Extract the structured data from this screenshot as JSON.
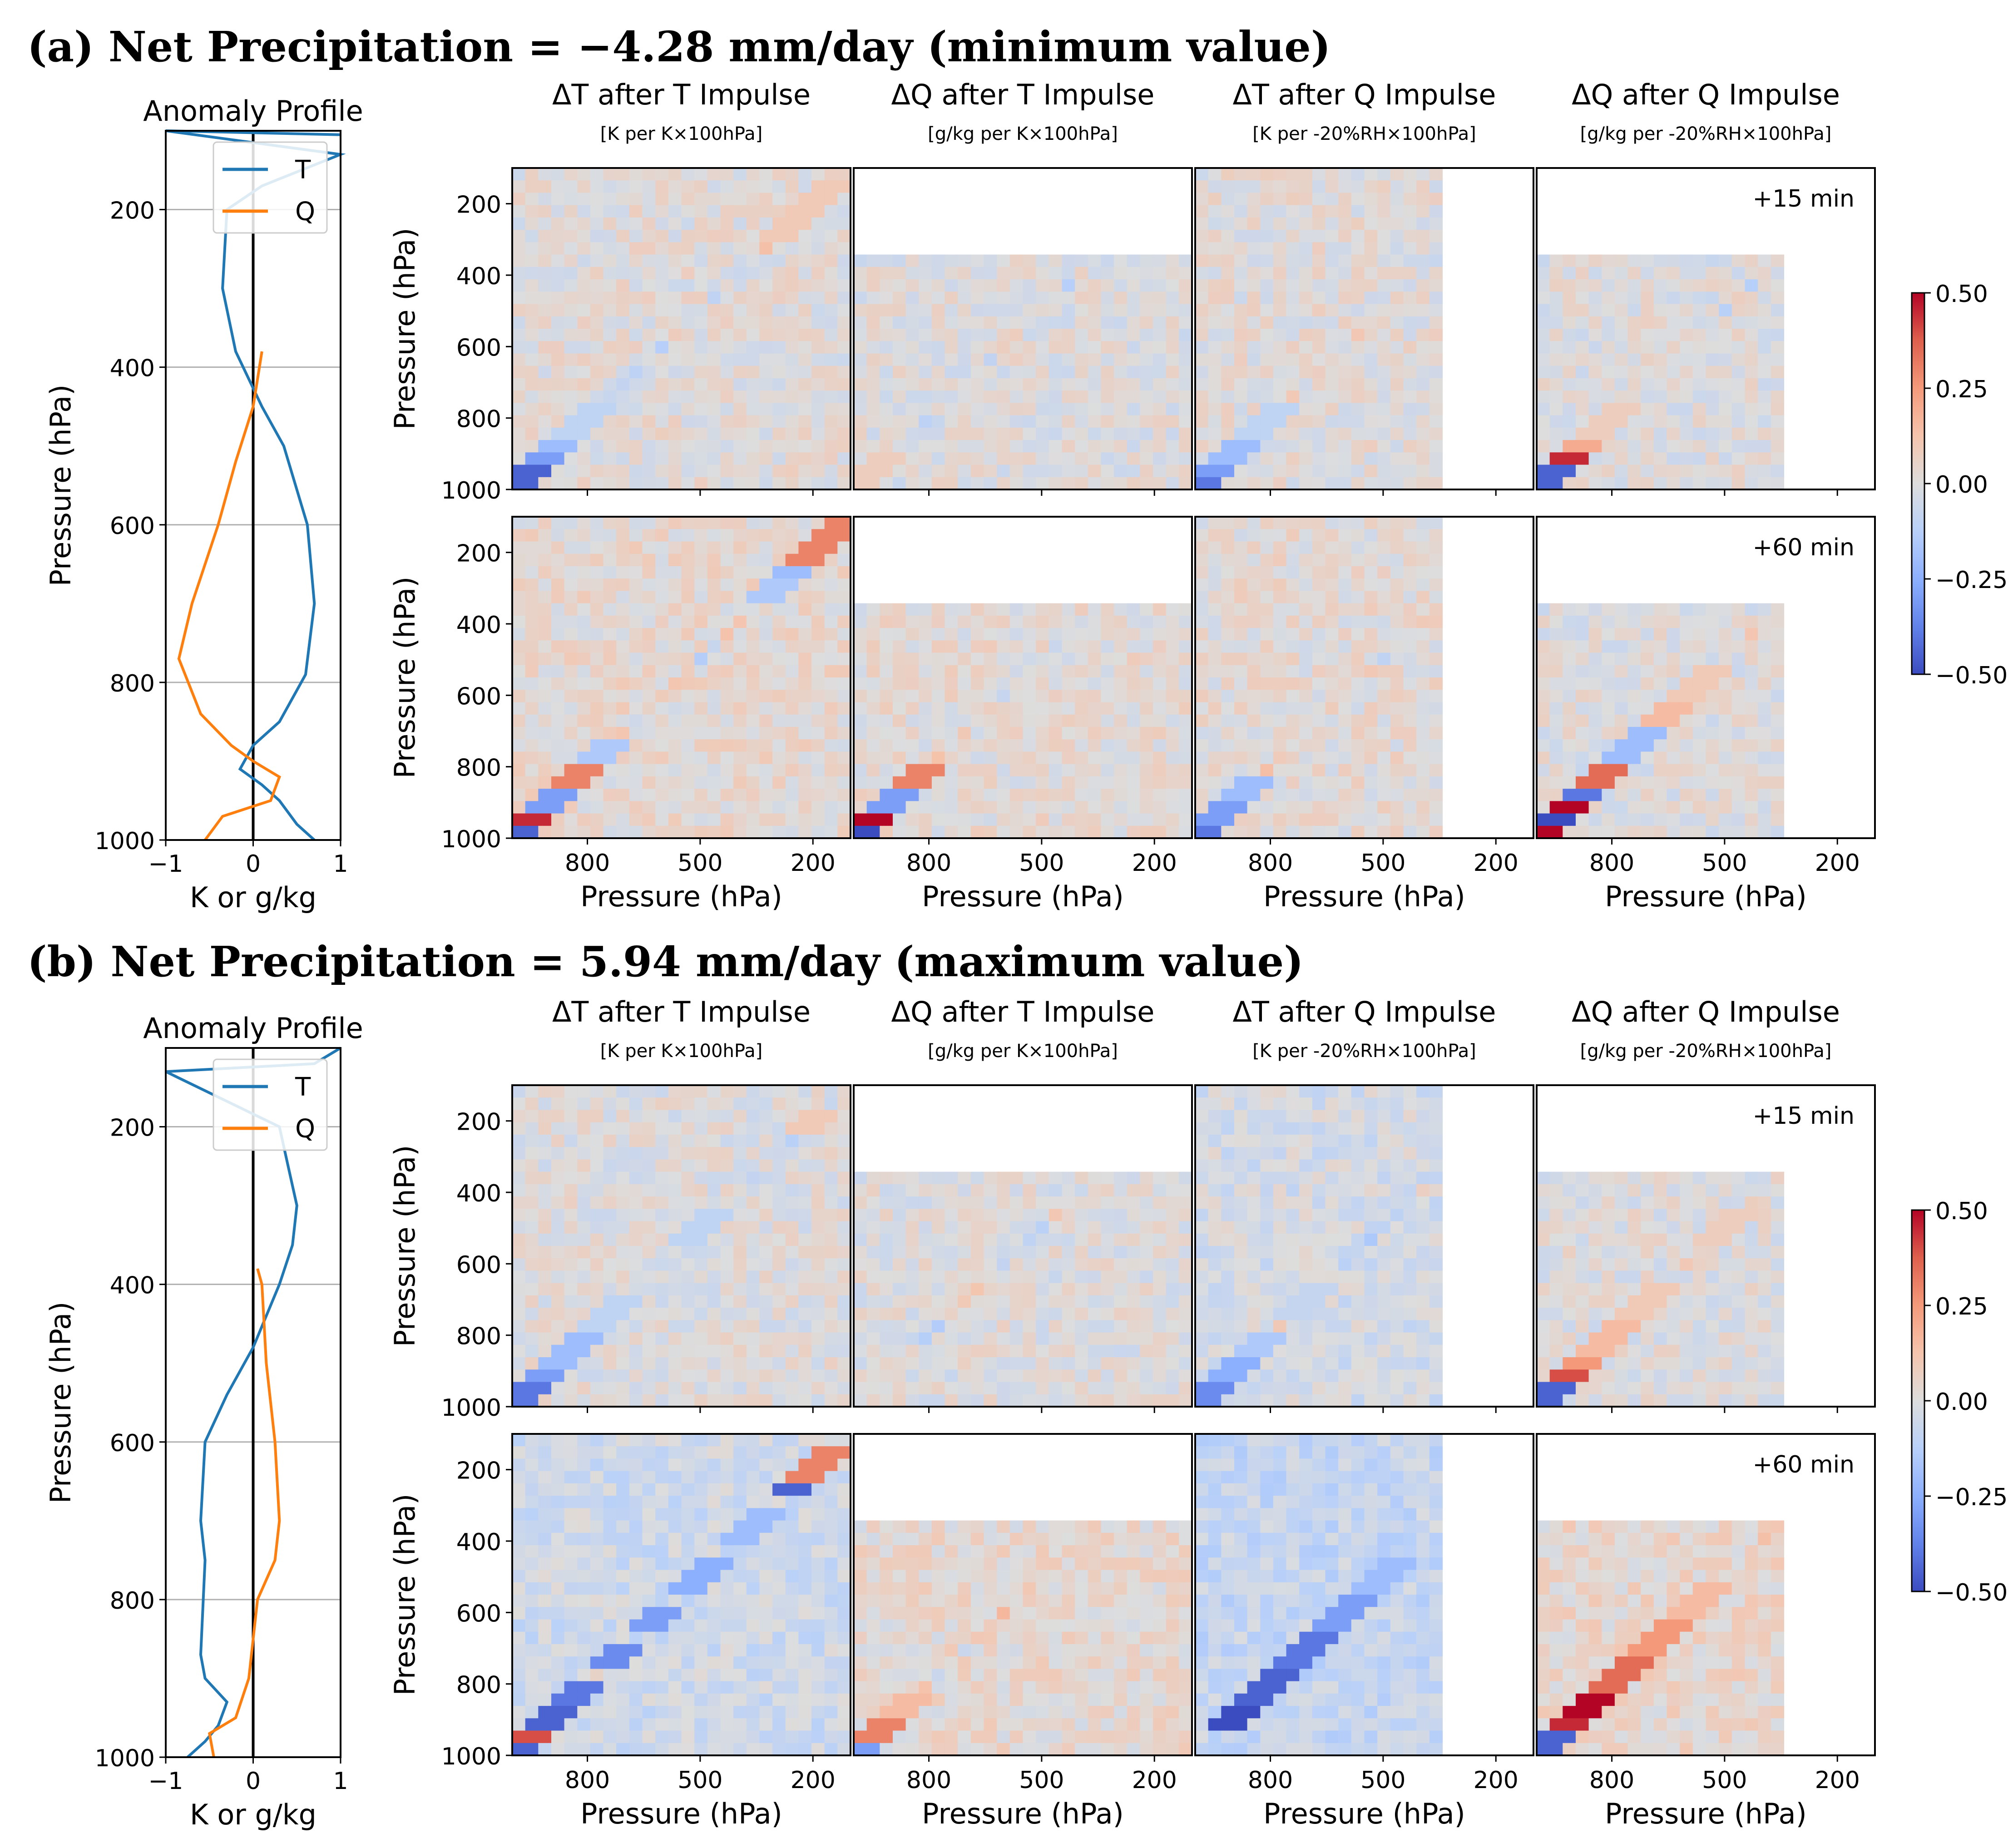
{
  "figure": {
    "panels": [
      {
        "label": "(a) Net Precipitation = −4.28 mm/day (minimum value)",
        "profile_title": "Anomaly Profile",
        "profile_xlabel": "K or g/kg",
        "profile_ylabel": "Pressure (hPa)",
        "legend": [
          "T",
          "Q"
        ]
      },
      {
        "label": "(b) Net Precipitation = 5.94 mm/day (maximum value)",
        "profile_title": "Anomaly Profile",
        "profile_xlabel": "K or g/kg",
        "profile_ylabel": "Pressure (hPa)",
        "legend": [
          "T",
          "Q"
        ]
      }
    ],
    "columns": [
      {
        "title": "ΔT after T Impulse",
        "units": "[K per K×100hPa]"
      },
      {
        "title": "ΔQ after T Impulse",
        "units": "[g/kg per K×100hPa]"
      },
      {
        "title": "ΔT after Q Impulse",
        "units": "[K per -20%RH×100hPa]"
      },
      {
        "title": "ΔQ after Q Impulse",
        "units": "[g/kg per -20%RH×100hPa]"
      }
    ],
    "times": [
      "+15 min",
      "+60 min"
    ],
    "heatmap_axis_label": "Pressure (hPa)",
    "heatmap_ticks": [
      "200",
      "400",
      "600",
      "800",
      "1000"
    ],
    "heatmap_xticks": [
      "800",
      "500",
      "200"
    ],
    "profile_yticks": [
      "200",
      "400",
      "600",
      "800",
      "1000"
    ],
    "profile_xticks": [
      "−1",
      "0",
      "1"
    ],
    "colorbar_ticks": [
      "0.50",
      "0.25",
      "0.00",
      "−0.25",
      "−0.50"
    ]
  },
  "chart_data": [
    {
      "type": "line",
      "panel": "a",
      "xlim": [
        -1,
        1
      ],
      "ylim": [
        1000,
        100
      ],
      "series": [
        {
          "name": "T",
          "color": "#1f77b4",
          "points": [
            [
              0.7,
              1000
            ],
            [
              0.5,
              980
            ],
            [
              0.3,
              950
            ],
            [
              0.1,
              930
            ],
            [
              -0.15,
              910
            ],
            [
              0.0,
              880
            ],
            [
              0.3,
              850
            ],
            [
              0.6,
              790
            ],
            [
              0.7,
              700
            ],
            [
              0.62,
              600
            ],
            [
              0.35,
              500
            ],
            [
              0.1,
              450
            ],
            [
              -0.2,
              380
            ],
            [
              -0.35,
              300
            ],
            [
              -0.3,
              200
            ],
            [
              0.1,
              170
            ],
            [
              1.0,
              130
            ],
            [
              -1.0,
              100
            ],
            [
              1.0,
              105
            ]
          ]
        },
        {
          "name": "Q",
          "color": "#ff7f0e",
          "points": [
            [
              -0.55,
              1000
            ],
            [
              -0.35,
              970
            ],
            [
              0.2,
              950
            ],
            [
              0.3,
              920
            ],
            [
              0.0,
              900
            ],
            [
              -0.25,
              880
            ],
            [
              -0.6,
              840
            ],
            [
              -0.85,
              770
            ],
            [
              -0.7,
              700
            ],
            [
              -0.4,
              600
            ],
            [
              -0.2,
              520
            ],
            [
              0.0,
              450
            ],
            [
              0.1,
              380
            ]
          ]
        }
      ]
    },
    {
      "type": "line",
      "panel": "b",
      "xlim": [
        -1,
        1
      ],
      "ylim": [
        1000,
        100
      ],
      "series": [
        {
          "name": "T",
          "color": "#1f77b4",
          "points": [
            [
              -0.75,
              1000
            ],
            [
              -0.55,
              980
            ],
            [
              -0.4,
              960
            ],
            [
              -0.3,
              930
            ],
            [
              -0.55,
              900
            ],
            [
              -0.6,
              870
            ],
            [
              -0.55,
              750
            ],
            [
              -0.6,
              700
            ],
            [
              -0.55,
              600
            ],
            [
              -0.3,
              540
            ],
            [
              0.0,
              480
            ],
            [
              0.3,
              400
            ],
            [
              0.45,
              350
            ],
            [
              0.5,
              300
            ],
            [
              0.4,
              250
            ],
            [
              0.3,
              200
            ],
            [
              -1.0,
              130
            ],
            [
              0.7,
              120
            ],
            [
              1.0,
              100
            ]
          ]
        },
        {
          "name": "Q",
          "color": "#ff7f0e",
          "points": [
            [
              -0.45,
              1000
            ],
            [
              -0.5,
              970
            ],
            [
              -0.2,
              950
            ],
            [
              -0.05,
              900
            ],
            [
              0.0,
              850
            ],
            [
              0.05,
              800
            ],
            [
              0.25,
              750
            ],
            [
              0.3,
              700
            ],
            [
              0.25,
              600
            ],
            [
              0.15,
              500
            ],
            [
              0.1,
              400
            ],
            [
              0.05,
              380
            ]
          ]
        }
      ]
    },
    {
      "type": "heatmap",
      "description_values": "response matrices: input pressure (x) vs response pressure (y), colour range -0.5 to 0.5",
      "vmin": -0.5,
      "vmax": 0.5,
      "axis_range_hpa": [
        1000,
        100
      ],
      "grids": [
        {
          "panel": "a",
          "row": "+15 min",
          "col": 0,
          "mask_top_hpa": 100,
          "mask_right_hpa": null,
          "diag": [
            [
              1000,
              -0.45
            ],
            [
              970,
              0.4
            ],
            [
              940,
              -0.45
            ],
            [
              900,
              -0.3
            ],
            [
              860,
              -0.2
            ],
            [
              800,
              -0.1
            ],
            [
              700,
              -0.05
            ],
            [
              400,
              -0.05
            ],
            [
              250,
              0.1
            ],
            [
              180,
              0.1
            ]
          ],
          "bg": 0.01
        },
        {
          "panel": "a",
          "row": "+15 min",
          "col": 1,
          "mask_top_hpa": 340,
          "mask_right_hpa": null,
          "diag": [
            [
              1000,
              0.1
            ],
            [
              950,
              0.08
            ]
          ],
          "bg": 0.0
        },
        {
          "panel": "a",
          "row": "+15 min",
          "col": 2,
          "mask_top_hpa": 100,
          "mask_right_hpa": 340,
          "diag": [
            [
              950,
              -0.4
            ],
            [
              920,
              -0.3
            ],
            [
              870,
              -0.2
            ],
            [
              800,
              -0.1
            ]
          ],
          "bg": 0.01
        },
        {
          "panel": "a",
          "row": "+15 min",
          "col": 3,
          "mask_top_hpa": 340,
          "mask_right_hpa": 340,
          "diag": [
            [
              1000,
              -0.45
            ],
            [
              970,
              0.45
            ],
            [
              940,
              -0.45
            ],
            [
              900,
              0.45
            ],
            [
              860,
              0.2
            ],
            [
              800,
              0.08
            ]
          ],
          "bg": 0.0
        },
        {
          "panel": "a",
          "row": "+60 min",
          "col": 0,
          "mask_top_hpa": 100,
          "mask_right_hpa": null,
          "diag": [
            [
              1000,
              0.5
            ],
            [
              960,
              -0.45
            ],
            [
              920,
              0.45
            ],
            [
              880,
              -0.3
            ],
            [
              820,
              0.3
            ],
            [
              760,
              -0.15
            ],
            [
              300,
              -0.15
            ],
            [
              220,
              -0.2
            ],
            [
              180,
              0.3
            ],
            [
              150,
              0.3
            ]
          ],
          "bg": 0.03
        },
        {
          "panel": "a",
          "row": "+60 min",
          "col": 1,
          "mask_top_hpa": 340,
          "mask_right_hpa": null,
          "diag": [
            [
              1000,
              0.5
            ],
            [
              960,
              -0.5
            ],
            [
              920,
              0.5
            ],
            [
              880,
              -0.3
            ],
            [
              820,
              0.3
            ],
            [
              760,
              0.05
            ]
          ],
          "bg": 0.02
        },
        {
          "panel": "a",
          "row": "+60 min",
          "col": 2,
          "mask_top_hpa": 100,
          "mask_right_hpa": 340,
          "diag": [
            [
              1000,
              -0.45
            ],
            [
              960,
              -0.4
            ],
            [
              920,
              -0.3
            ],
            [
              860,
              -0.2
            ]
          ],
          "bg": 0.02
        },
        {
          "panel": "a",
          "row": "+60 min",
          "col": 3,
          "mask_top_hpa": 340,
          "mask_right_hpa": 340,
          "diag": [
            [
              1000,
              -0.5
            ],
            [
              960,
              0.5
            ],
            [
              920,
              -0.5
            ],
            [
              880,
              0.5
            ],
            [
              840,
              -0.4
            ],
            [
              800,
              0.35
            ],
            [
              740,
              -0.2
            ],
            [
              650,
              0.15
            ],
            [
              560,
              0.1
            ]
          ],
          "bg": 0.0
        },
        {
          "panel": "b",
          "row": "+15 min",
          "col": 0,
          "mask_top_hpa": 100,
          "mask_right_hpa": null,
          "diag": [
            [
              1000,
              -0.45
            ],
            [
              970,
              0.3
            ],
            [
              940,
              -0.4
            ],
            [
              900,
              -0.3
            ],
            [
              850,
              -0.2
            ],
            [
              750,
              -0.1
            ],
            [
              500,
              -0.1
            ],
            [
              300,
              -0.05
            ],
            [
              200,
              0.1
            ]
          ],
          "bg": 0.0
        },
        {
          "panel": "b",
          "row": "+15 min",
          "col": 1,
          "mask_top_hpa": 340,
          "mask_right_hpa": null,
          "diag": [
            [
              1000,
              0.05
            ]
          ],
          "bg": 0.0
        },
        {
          "panel": "b",
          "row": "+15 min",
          "col": 2,
          "mask_top_hpa": 100,
          "mask_right_hpa": 340,
          "diag": [
            [
              950,
              -0.35
            ],
            [
              900,
              -0.25
            ],
            [
              820,
              -0.15
            ],
            [
              700,
              -0.08
            ]
          ],
          "bg": -0.03
        },
        {
          "panel": "b",
          "row": "+15 min",
          "col": 3,
          "mask_top_hpa": 340,
          "mask_right_hpa": 340,
          "diag": [
            [
              1000,
              -0.45
            ],
            [
              970,
              0.45
            ],
            [
              940,
              -0.45
            ],
            [
              900,
              0.4
            ],
            [
              860,
              0.25
            ],
            [
              800,
              0.15
            ],
            [
              700,
              0.1
            ],
            [
              500,
              0.08
            ]
          ],
          "bg": 0.0
        },
        {
          "panel": "b",
          "row": "+60 min",
          "col": 0,
          "mask_top_hpa": 100,
          "mask_right_hpa": null,
          "diag": [
            [
              1000,
              0.5
            ],
            [
              960,
              -0.45
            ],
            [
              920,
              0.4
            ],
            [
              880,
              -0.45
            ],
            [
              820,
              -0.4
            ],
            [
              720,
              -0.35
            ],
            [
              620,
              -0.3
            ],
            [
              500,
              -0.25
            ],
            [
              350,
              -0.2
            ],
            [
              220,
              -0.45
            ],
            [
              180,
              0.3
            ]
          ],
          "bg": -0.05
        },
        {
          "panel": "b",
          "row": "+60 min",
          "col": 1,
          "mask_top_hpa": 340,
          "mask_right_hpa": null,
          "diag": [
            [
              1000,
              0.4
            ],
            [
              960,
              -0.3
            ],
            [
              920,
              0.3
            ],
            [
              860,
              0.15
            ]
          ],
          "bg": 0.03
        },
        {
          "panel": "b",
          "row": "+60 min",
          "col": 2,
          "mask_top_hpa": 100,
          "mask_right_hpa": 340,
          "diag": [
            [
              900,
              -0.5
            ],
            [
              800,
              -0.45
            ],
            [
              700,
              -0.4
            ],
            [
              600,
              -0.3
            ],
            [
              500,
              -0.2
            ]
          ],
          "bg": -0.08
        },
        {
          "panel": "b",
          "row": "+60 min",
          "col": 3,
          "mask_top_hpa": 340,
          "mask_right_hpa": 340,
          "diag": [
            [
              1000,
              -0.45
            ],
            [
              970,
              0.45
            ],
            [
              940,
              -0.45
            ],
            [
              900,
              0.45
            ],
            [
              850,
              0.5
            ],
            [
              780,
              0.35
            ],
            [
              680,
              0.25
            ],
            [
              560,
              0.15
            ]
          ],
          "bg": 0.04
        }
      ]
    }
  ]
}
